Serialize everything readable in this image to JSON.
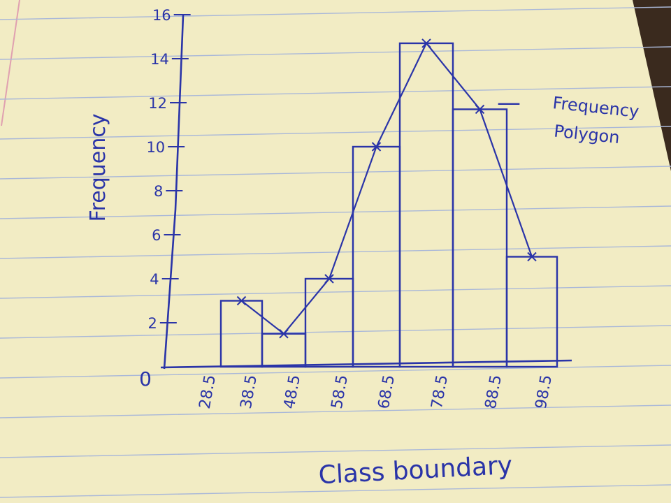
{
  "colors": {
    "paper": "#f2ecc4",
    "rule_line": "#aab8d8",
    "margin_line": "#e0a0b0",
    "ink": "#2a34a8",
    "background": "#3a2a1e"
  },
  "chart_data": {
    "type": "bar",
    "subtype": "histogram-with-frequency-polygon",
    "title": "",
    "xlabel": "Class boundary",
    "ylabel": "Frequency",
    "ylim": [
      0,
      17
    ],
    "yticks": [
      0,
      2,
      4,
      6,
      8,
      10,
      12,
      14,
      16
    ],
    "ytick_labels": [
      "0",
      "2",
      "4",
      "6",
      "8",
      "10",
      "12",
      "14",
      "16"
    ],
    "x_tick_labels": [
      "28.5",
      "38.5",
      "48.5",
      "58.5",
      "68.5",
      "78.5",
      "88.5",
      "98.5"
    ],
    "bars": [
      {
        "from": "28.5",
        "to": "38.5",
        "value": 3
      },
      {
        "from": "38.5",
        "to": "48.5",
        "value": 1.5
      },
      {
        "from": "48.5",
        "to": "58.5",
        "value": 4
      },
      {
        "from": "58.5",
        "to": "68.5",
        "value": 10
      },
      {
        "from": "68.5",
        "to": "78.5",
        "value": 14.7
      },
      {
        "from": "78.5",
        "to": "88.5",
        "value": 11.7
      },
      {
        "from": "88.5",
        "to": "98.5",
        "value": 5
      }
    ],
    "polygon": [
      3,
      1.5,
      4,
      10,
      14.7,
      11.7,
      5
    ],
    "legend": {
      "symbol": "—",
      "label": "Frequency Polygon",
      "position": "top-right"
    },
    "grid": false
  }
}
